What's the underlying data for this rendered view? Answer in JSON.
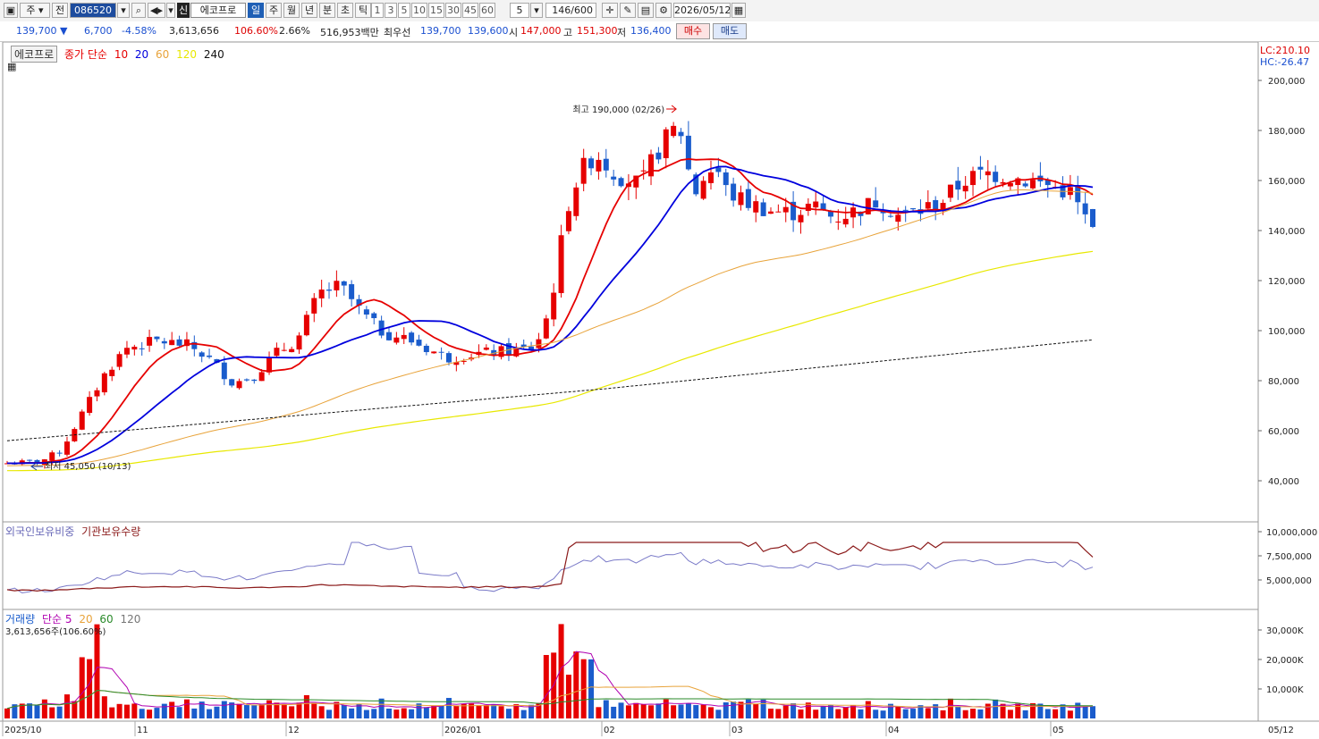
{
  "toolbar": {
    "market_label": "주",
    "prev_label": "전",
    "code": "086520",
    "shin_label": "신",
    "stock_name": "에코프로",
    "periods": [
      "일",
      "주",
      "월",
      "년",
      "분",
      "초",
      "틱"
    ],
    "active_period": "일",
    "minute_options": [
      "1",
      "3",
      "5",
      "10",
      "15",
      "30",
      "45",
      "60"
    ],
    "count_value": "5",
    "range_value": "146/600",
    "date_value": "2026/05/12"
  },
  "info": {
    "price": "139,700",
    "change": "6,700",
    "change_pct": "-4.58%",
    "volume": "3,613,656",
    "volume_ratio": "106.60%",
    "turnover": "2.66%",
    "amount": "516,953백만",
    "best_ask_label": "최우선",
    "best_ask": "139,700",
    "best_bid": "139,600",
    "open_label": "시",
    "open": "147,000",
    "high_label": "고",
    "high": "151,300",
    "low_label": "저",
    "low": "136,400",
    "buy_label": "매수",
    "sell_label": "매도"
  },
  "legend": {
    "name": "에코프로",
    "ma_label": "종가 단순",
    "ma": [
      {
        "label": "10",
        "color": "#e60000"
      },
      {
        "label": "20",
        "color": "#0000dd"
      },
      {
        "label": "60",
        "color": "#e8a33a"
      },
      {
        "label": "120",
        "color": "#e8e800"
      },
      {
        "label": "240",
        "color": "#111111"
      }
    ],
    "lc": "LC:210.10",
    "hc": "HC:-26.47"
  },
  "annotations": {
    "high": "최고 190,000 (02/26)",
    "low": "최저 45,050 (10/13)"
  },
  "hold_legend": {
    "foreign": "외국인보유비중",
    "inst": "기관보유수량"
  },
  "vol_legend": {
    "label": "거래량",
    "ma_label": "단순 5",
    "ma2": "20",
    "ma3": "60",
    "ma4": "120",
    "last": "3,613,656주(106.60%)"
  },
  "chart_data": {
    "type": "candlestick",
    "price_axis": {
      "ticks": [
        40000,
        60000,
        80000,
        100000,
        120000,
        140000,
        160000,
        180000,
        200000
      ],
      "labels": [
        "40,000",
        "60,000",
        "80,000",
        "100,000",
        "120,000",
        "140,000",
        "160,000",
        "180,000",
        "200,000"
      ]
    },
    "x_labels": [
      "2025/10",
      "11",
      "12",
      "2026/01",
      "02",
      "03",
      "04",
      "05"
    ],
    "last_date": "05/12",
    "holdings_axis": {
      "ticks": [
        5000000,
        7500000,
        10000000
      ],
      "labels": [
        "5,000,000",
        "7,500,000",
        "10,000,000"
      ]
    },
    "volume_axis": {
      "ticks": [
        10000000,
        20000000,
        30000000
      ],
      "labels": [
        "10,000K",
        "20,000K",
        "30,000K"
      ]
    },
    "colors": {
      "up": "#e60000",
      "down": "#1a5ccc",
      "ma10": "#e60000",
      "ma20": "#0000dd",
      "ma60": "#e8a33a",
      "ma120": "#e8e800",
      "ma240": "#111111",
      "foreign": "#7a7ac8",
      "inst": "#8b1a1a"
    }
  }
}
